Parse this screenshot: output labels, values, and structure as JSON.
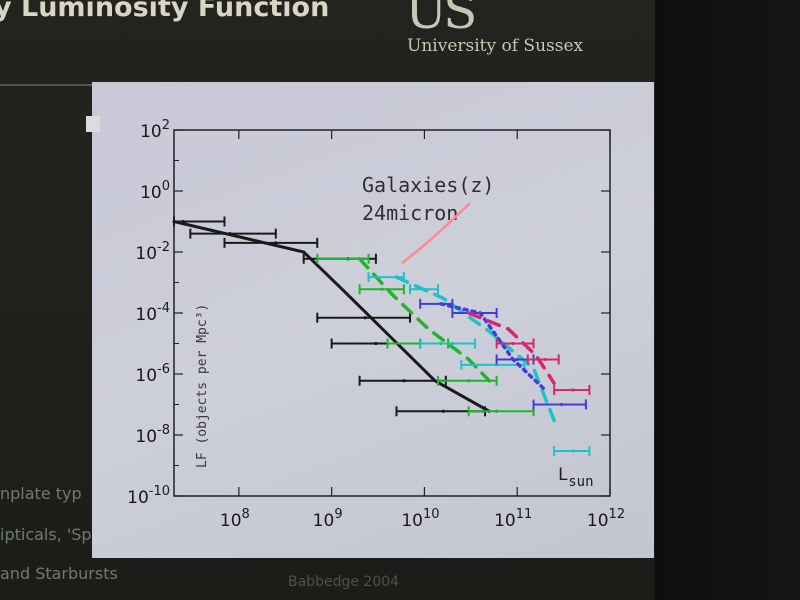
{
  "slide": {
    "title": "y Luminosity Function",
    "logo_mark": "US",
    "university": "University of Sussex",
    "bullets": [
      "nplate typ",
      "ipticals, 'Spirals'",
      "and Starbursts"
    ],
    "credit": "Babbedge 2004"
  },
  "colors": {
    "black_model": "#1a1a1a",
    "green": "#22b52c",
    "cyan": "#1fc2c8",
    "blue": "#3f3fd8",
    "magenta": "#d6286e",
    "pink_arrow": "#ff8a8a"
  },
  "chart_data": {
    "type": "line",
    "title": "",
    "annotation_lines": [
      "Galaxies(z)",
      "24micron"
    ],
    "xlabel": "L_sun",
    "ylabel": "LF (objects per Mpc³)",
    "x_log": true,
    "y_log": true,
    "xlim": [
      20000000.0,
      1000000000000.0
    ],
    "ylim": [
      1e-10,
      100
    ],
    "x_tick_labels": [
      {
        "value": 100000000.0,
        "base": "10",
        "exp": "8"
      },
      {
        "value": 1000000000.0,
        "base": "10",
        "exp": "9"
      },
      {
        "value": 10000000000.0,
        "base": "10",
        "exp": "10"
      },
      {
        "value": 100000000000.0,
        "base": "10",
        "exp": "11"
      },
      {
        "value": 1000000000000.0,
        "base": "10",
        "exp": "12"
      }
    ],
    "y_tick_labels": [
      {
        "value": 100,
        "base": "10",
        "exp": "2"
      },
      {
        "value": 1,
        "base": "10",
        "exp": "0"
      },
      {
        "value": 0.01,
        "base": "10",
        "exp": "-2"
      },
      {
        "value": 0.0001,
        "base": "10",
        "exp": "-4"
      },
      {
        "value": 1e-06,
        "base": "10",
        "exp": "-6"
      },
      {
        "value": 1e-08,
        "base": "10",
        "exp": "-8"
      },
      {
        "value": 1e-10,
        "base": "10",
        "exp": "-10"
      }
    ],
    "series": [
      {
        "color": "black",
        "model_line": {
          "x": [
            20000000.0,
            500000000.0,
            1300000000.0,
            13000000000.0,
            50000000000.0
          ],
          "y": [
            0.1,
            0.01,
            0.0006,
            6e-07,
            6e-08
          ]
        },
        "points": [
          {
            "x": 25000000.0,
            "y": 0.1,
            "xerr": [
              20000000.0,
              70000000.0
            ]
          },
          {
            "x": 80000000.0,
            "y": 0.04,
            "xerr": [
              30000000.0,
              250000000.0
            ]
          },
          {
            "x": 250000000.0,
            "y": 0.02,
            "xerr": [
              70000000.0,
              700000000.0
            ]
          },
          {
            "x": 1500000000.0,
            "y": 0.006,
            "xerr": [
              500000000.0,
              3000000000.0
            ]
          },
          {
            "x": 2300000000.0,
            "y": 7e-05,
            "xerr": [
              700000000.0,
              7000000000.0
            ]
          },
          {
            "x": 3000000000.0,
            "y": 1e-05,
            "xerr": [
              1000000000.0,
              9000000000.0
            ]
          },
          {
            "x": 6000000000.0,
            "y": 6e-07,
            "xerr": [
              2000000000.0,
              17000000000.0
            ]
          },
          {
            "x": 16000000000.0,
            "y": 6e-08,
            "xerr": [
              5000000000.0,
              45000000000.0
            ]
          }
        ]
      },
      {
        "color": "green",
        "model_line": {
          "x": [
            2000000000.0,
            4500000000.0,
            11000000000.0,
            30000000000.0,
            50000000000.0
          ],
          "y": [
            0.006,
            0.0004,
            3e-05,
            3e-06,
            6e-07
          ]
        },
        "points": [
          {
            "x": 2000000000.0,
            "y": 0.006,
            "xerr": [
              700000000.0,
              2500000000.0
            ]
          },
          {
            "x": 3500000000.0,
            "y": 0.0006,
            "xerr": [
              2000000000.0,
              6000000000.0
            ]
          },
          {
            "x": 15000000000.0,
            "y": 1e-05,
            "xerr": [
              4000000000.0,
              18000000000.0
            ]
          },
          {
            "x": 30000000000.0,
            "y": 6e-07,
            "xerr": [
              14000000000.0,
              60000000000.0
            ]
          },
          {
            "x": 60000000000.0,
            "y": 6e-08,
            "xerr": [
              30000000000.0,
              150000000000.0
            ]
          }
        ]
      },
      {
        "color": "cyan",
        "model_line": {
          "x": [
            5000000000.0,
            16000000000.0,
            50000000000.0,
            150000000000.0,
            250000000000.0
          ],
          "y": [
            0.0015,
            0.0003,
            2.5e-05,
            1.5e-06,
            3e-08
          ]
        },
        "points": [
          {
            "x": 5000000000.0,
            "y": 0.0015,
            "xerr": [
              2500000000.0,
              6000000000.0
            ]
          },
          {
            "x": 10000000000.0,
            "y": 0.0006,
            "xerr": [
              7000000000.0,
              14000000000.0
            ]
          },
          {
            "x": 20000000000.0,
            "y": 1e-05,
            "xerr": [
              9000000000.0,
              35000000000.0
            ]
          },
          {
            "x": 60000000000.0,
            "y": 2e-06,
            "xerr": [
              25000000000.0,
              120000000000.0
            ]
          },
          {
            "x": 400000000000.0,
            "y": 3e-09,
            "xerr": [
              250000000000.0,
              600000000000.0
            ]
          }
        ]
      },
      {
        "color": "blue",
        "model_line": {
          "x": [
            15000000000.0,
            40000000000.0,
            90000000000.0,
            200000000000.0
          ],
          "y": [
            0.0002,
            0.0001,
            3e-06,
            3e-07
          ]
        },
        "points": [
          {
            "x": 15000000000.0,
            "y": 0.0002,
            "xerr": [
              9000000000.0,
              20000000000.0
            ]
          },
          {
            "x": 40000000000.0,
            "y": 0.0001,
            "xerr": [
              20000000000.0,
              60000000000.0
            ]
          },
          {
            "x": 100000000000.0,
            "y": 3e-06,
            "xerr": [
              60000000000.0,
              150000000000.0
            ]
          },
          {
            "x": 300000000000.0,
            "y": 1e-07,
            "xerr": [
              150000000000.0,
              550000000000.0
            ]
          }
        ]
      },
      {
        "color": "magenta",
        "model_line": {
          "x": [
            30000000000.0,
            80000000000.0,
            160000000000.0,
            250000000000.0
          ],
          "y": [
            0.0001,
            3e-05,
            4e-06,
            5e-07
          ]
        },
        "points": [
          {
            "x": 90000000000.0,
            "y": 1e-05,
            "xerr": [
              60000000000.0,
              150000000000.0
            ]
          },
          {
            "x": 200000000000.0,
            "y": 3e-06,
            "xerr": [
              130000000000.0,
              280000000000.0
            ]
          },
          {
            "x": 400000000000.0,
            "y": 3e-07,
            "xerr": [
              250000000000.0,
              600000000000.0
            ]
          }
        ]
      }
    ]
  }
}
